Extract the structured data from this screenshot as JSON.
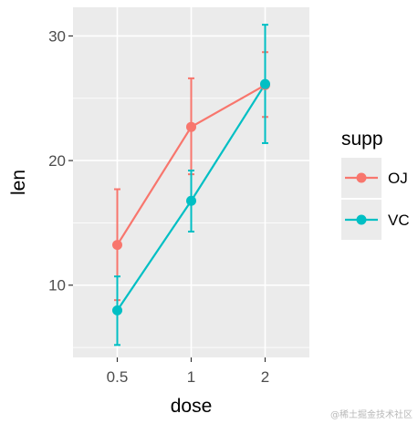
{
  "chart_data": {
    "type": "line",
    "x": [
      "0.5",
      "1",
      "2"
    ],
    "xlabel": "dose",
    "ylabel": "len",
    "ylim": [
      4.2,
      32.3
    ],
    "yticks": [
      10,
      20,
      30
    ],
    "grid": true,
    "error_bars": true,
    "legend_title": "supp",
    "legend_position": "right",
    "series": [
      {
        "name": "OJ",
        "color": "#F8766D",
        "values": [
          13.23,
          22.7,
          26.06
        ],
        "lower": [
          8.8,
          18.9,
          23.5
        ],
        "upper": [
          17.7,
          26.6,
          28.7
        ]
      },
      {
        "name": "VC",
        "color": "#00BFC4",
        "values": [
          7.98,
          16.77,
          26.14
        ],
        "lower": [
          5.2,
          14.3,
          21.4
        ],
        "upper": [
          10.7,
          19.2,
          30.9
        ]
      }
    ]
  },
  "watermark": "@稀土掘金技术社区"
}
